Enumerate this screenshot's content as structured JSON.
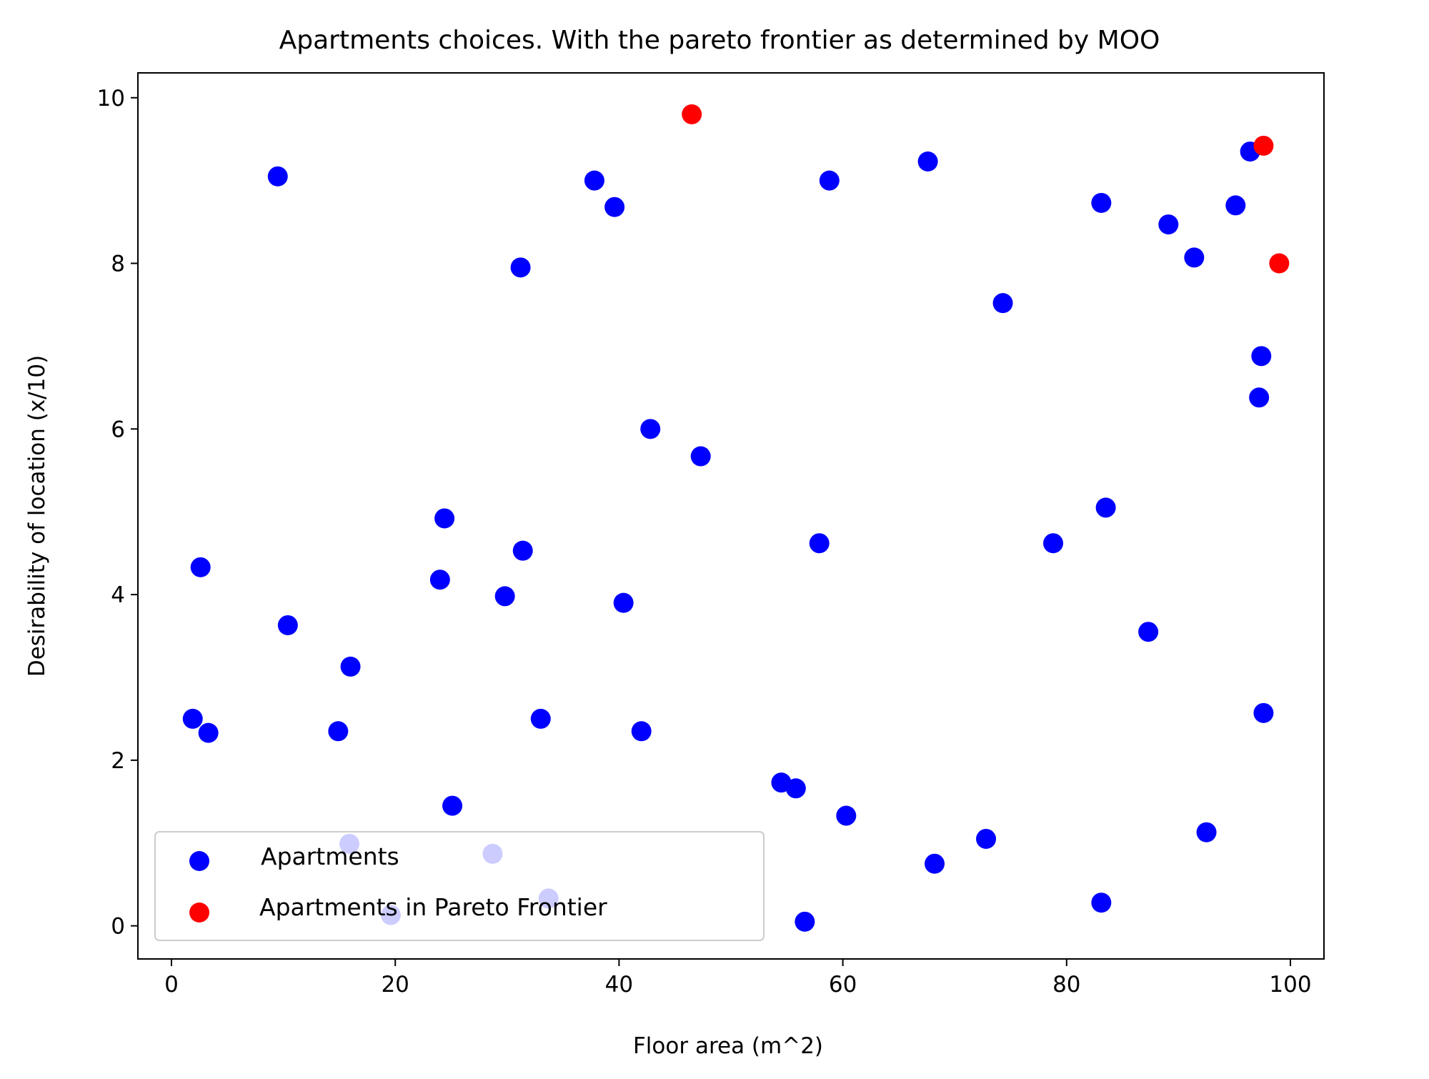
{
  "chart_data": {
    "type": "scatter",
    "title": "Apartments choices. With the pareto frontier as determined by MOO",
    "xlabel": "Floor area (m^2)",
    "ylabel": "Desirability of location (x/10)",
    "xlim": [
      -3,
      103
    ],
    "ylim": [
      -0.4,
      10.3
    ],
    "xticks": [
      0,
      20,
      40,
      60,
      80,
      100
    ],
    "yticks": [
      0,
      2,
      4,
      6,
      8,
      10
    ],
    "xtick_labels": [
      "0",
      "20",
      "40",
      "60",
      "80",
      "100"
    ],
    "ytick_labels": [
      "0",
      "2",
      "4",
      "6",
      "8",
      "10"
    ],
    "grid": false,
    "legend_position": "lower-left",
    "series": [
      {
        "name": "Apartments",
        "color": "#0000ff",
        "points": [
          [
            9.5,
            9.05
          ],
          [
            31.2,
            7.95
          ],
          [
            37.8,
            9.0
          ],
          [
            39.6,
            8.68
          ],
          [
            58.8,
            9.0
          ],
          [
            67.6,
            9.23
          ],
          [
            74.3,
            7.52
          ],
          [
            83.1,
            8.73
          ],
          [
            89.1,
            8.47
          ],
          [
            91.4,
            8.07
          ],
          [
            95.1,
            8.7
          ],
          [
            96.4,
            9.35
          ],
          [
            97.4,
            6.88
          ],
          [
            97.2,
            6.38
          ],
          [
            42.8,
            6.0
          ],
          [
            47.3,
            5.67
          ],
          [
            24.4,
            4.92
          ],
          [
            2.6,
            4.33
          ],
          [
            31.4,
            4.53
          ],
          [
            24.0,
            4.18
          ],
          [
            29.8,
            3.98
          ],
          [
            40.4,
            3.9
          ],
          [
            57.9,
            4.62
          ],
          [
            78.8,
            4.62
          ],
          [
            83.5,
            5.05
          ],
          [
            87.3,
            3.55
          ],
          [
            10.4,
            3.63
          ],
          [
            16.0,
            3.13
          ],
          [
            1.9,
            2.5
          ],
          [
            3.3,
            2.33
          ],
          [
            14.9,
            2.35
          ],
          [
            33.0,
            2.5
          ],
          [
            42.0,
            2.35
          ],
          [
            97.6,
            2.57
          ],
          [
            54.5,
            1.73
          ],
          [
            55.8,
            1.66
          ],
          [
            25.1,
            1.45
          ],
          [
            60.3,
            1.33
          ],
          [
            72.8,
            1.05
          ],
          [
            92.5,
            1.13
          ],
          [
            68.2,
            0.75
          ],
          [
            83.1,
            0.28
          ],
          [
            56.6,
            0.05
          ],
          [
            15.9,
            0.99
          ],
          [
            28.7,
            0.87
          ],
          [
            33.7,
            0.33
          ],
          [
            19.6,
            0.13
          ]
        ]
      },
      {
        "name": "Apartments in Pareto Frontier",
        "color": "#ff0000",
        "points": [
          [
            46.5,
            9.8
          ],
          [
            97.6,
            9.42
          ],
          [
            99.0,
            8.0
          ]
        ]
      }
    ]
  }
}
